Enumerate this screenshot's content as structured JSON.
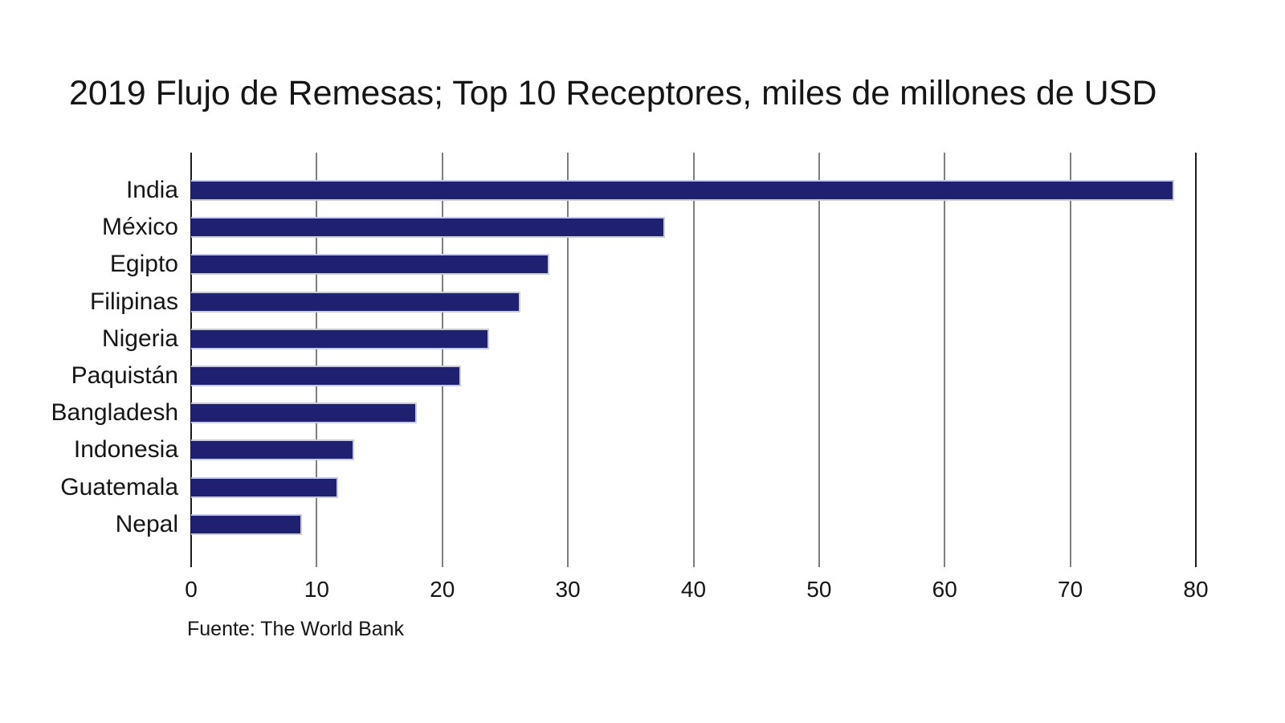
{
  "title": "2019 Flujo de Remesas; Top 10 Receptores, miles de millones de USD",
  "source": "Fuente: The World Bank",
  "chart_data": {
    "type": "bar",
    "orientation": "horizontal",
    "title": "2019 Flujo de Remesas; Top 10 Receptores, miles de millones de USD",
    "categories": [
      "India",
      "México",
      "Egipto",
      "Filipinas",
      "Nigeria",
      "Paquistán",
      "Bangladesh",
      "Indonesia",
      "Guatemala",
      "Nepal"
    ],
    "values": [
      78.3,
      37.7,
      28.5,
      26.2,
      23.7,
      21.5,
      18.0,
      13.0,
      11.7,
      8.8
    ],
    "xlabel": "",
    "ylabel": "",
    "xlim": [
      0,
      80
    ],
    "xticks": [
      0,
      10,
      20,
      30,
      40,
      50,
      60,
      70,
      80
    ],
    "grid": true,
    "legend": "none",
    "annotation": "Fuente: The World Bank",
    "colors": {
      "bar_fill": "#1f2170",
      "bar_edge": "#c9cbe2",
      "gridline": "#7f7f7f",
      "axis_edge": "#1c1c1c",
      "text": "#151515",
      "background": "#ffffff"
    }
  }
}
